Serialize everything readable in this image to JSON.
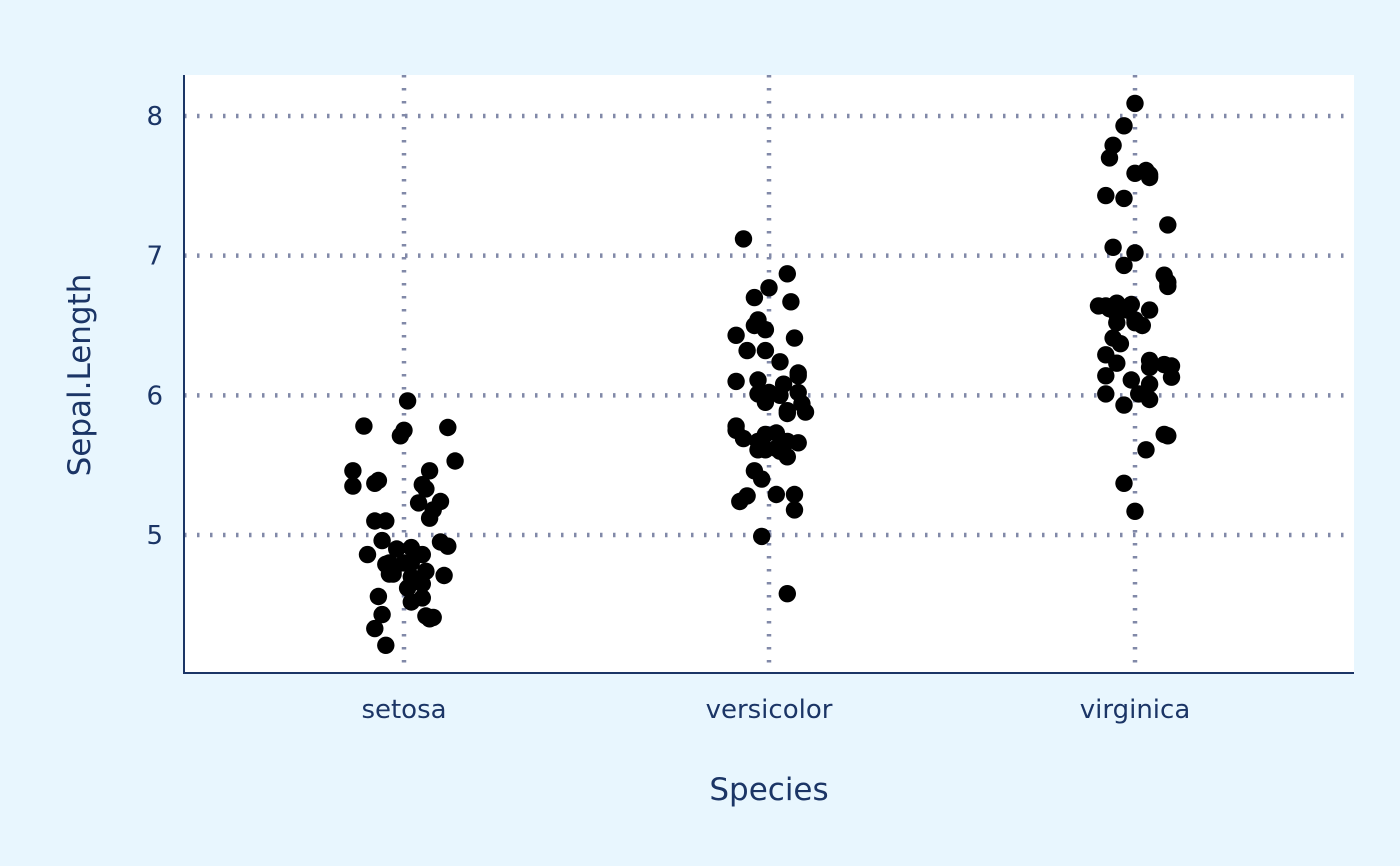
{
  "chart_data": {
    "type": "scatter",
    "title": "",
    "xlabel": "Species",
    "ylabel": "Sepal.Length",
    "categories": [
      "setosa",
      "versicolor",
      "virginica"
    ],
    "y_ticks": [
      5,
      6,
      7,
      8
    ],
    "ylim": [
      4.1,
      8.3
    ],
    "grid": true,
    "legend": "none",
    "colors": {
      "background": "#e8f6fe",
      "panel": "#ffffff",
      "grid": "#8189a8",
      "axis": "#1b3566",
      "text": "#1b3566",
      "point": "#000000"
    },
    "series": [
      {
        "category": "setosa",
        "jitter": [
          0.01,
          -0.11,
          0.12,
          0.0,
          -0.01,
          0.14,
          0.07,
          -0.14,
          -0.07,
          -0.08,
          0.05,
          -0.14,
          0.06,
          0.1,
          0.04,
          0.08,
          0.07,
          -0.05,
          -0.08,
          -0.06,
          0.1,
          0.12,
          0.02,
          -0.02,
          0.05,
          -0.1,
          -0.04,
          0.02,
          -0.05,
          -0.04,
          -0.03,
          0.06,
          -0.03,
          -0.03,
          -0.04,
          0.11,
          0.02,
          0.03,
          0.05,
          0.05,
          -0.07,
          0.02,
          0.06,
          0.08,
          0.07,
          -0.06,
          -0.08,
          -0.05,
          0.0,
          0.01
        ],
        "y": [
          5.96,
          5.78,
          5.77,
          5.75,
          5.71,
          5.53,
          5.46,
          5.46,
          5.39,
          5.37,
          5.36,
          5.35,
          5.33,
          5.24,
          5.23,
          5.18,
          5.12,
          5.1,
          5.1,
          4.96,
          4.95,
          4.92,
          4.91,
          4.9,
          4.86,
          4.86,
          4.8,
          4.8,
          4.79,
          4.78,
          4.76,
          4.74,
          4.74,
          4.72,
          4.72,
          4.71,
          4.7,
          4.67,
          4.65,
          4.55,
          4.56,
          4.52,
          4.42,
          4.41,
          4.4,
          4.43,
          4.33,
          4.21,
          4.8,
          4.62
        ]
      },
      {
        "category": "versicolor",
        "jitter": [
          -0.07,
          0.05,
          -0.0,
          -0.04,
          0.06,
          -0.03,
          -0.04,
          -0.01,
          0.07,
          -0.09,
          -0.06,
          -0.01,
          0.03,
          -0.09,
          -0.03,
          0.08,
          0.08,
          0.0,
          0.04,
          -0.03,
          0.08,
          0.09,
          0.05,
          -0.01,
          0.05,
          -0.09,
          -0.09,
          -0.01,
          -0.03,
          0.05,
          -0.02,
          0.08,
          -0.07,
          -0.01,
          -0.03,
          0.03,
          0.05,
          -0.04,
          -0.02,
          0.07,
          0.02,
          -0.06,
          -0.08,
          0.07,
          -0.02,
          0.05,
          0.02,
          0.02,
          0.1,
          0.03
        ],
        "y": [
          7.12,
          6.87,
          6.77,
          6.7,
          6.67,
          6.54,
          6.5,
          6.47,
          6.41,
          6.43,
          6.32,
          6.32,
          6.24,
          6.1,
          6.11,
          6.14,
          6.16,
          6.02,
          6.08,
          6.01,
          6.02,
          5.94,
          5.89,
          5.95,
          5.87,
          5.78,
          5.75,
          5.72,
          5.67,
          5.67,
          5.66,
          5.66,
          5.69,
          5.61,
          5.61,
          5.6,
          5.56,
          5.46,
          5.4,
          5.29,
          5.29,
          5.28,
          5.24,
          5.18,
          4.99,
          4.58,
          5.62,
          5.73,
          5.88,
          6.0
        ]
      },
      {
        "category": "virginica",
        "jitter": [
          0.0,
          -0.03,
          -0.06,
          -0.07,
          0.03,
          0.0,
          0.04,
          0.04,
          -0.08,
          -0.03,
          0.09,
          0.08,
          -0.06,
          -0.03,
          0.0,
          -0.08,
          0.09,
          0.09,
          -0.1,
          -0.07,
          -0.01,
          -0.05,
          -0.02,
          0.04,
          0.0,
          -0.05,
          -0.06,
          -0.04,
          0.02,
          -0.08,
          0.04,
          -0.05,
          0.08,
          0.1,
          0.1,
          0.04,
          -0.08,
          -0.01,
          -0.08,
          0.01,
          0.04,
          0.04,
          -0.03,
          0.08,
          0.09,
          0.03,
          -0.03,
          0.0,
          -0.05,
          0.0
        ],
        "y": [
          8.09,
          7.93,
          7.79,
          7.7,
          7.61,
          7.59,
          7.58,
          7.56,
          7.43,
          7.41,
          7.22,
          6.86,
          7.06,
          6.93,
          7.02,
          6.64,
          6.81,
          6.78,
          6.64,
          6.62,
          6.65,
          6.66,
          6.61,
          6.61,
          6.52,
          6.52,
          6.41,
          6.37,
          6.5,
          6.29,
          6.25,
          6.23,
          6.22,
          6.21,
          6.13,
          6.2,
          6.14,
          6.11,
          6.01,
          6.01,
          5.97,
          6.08,
          5.93,
          5.72,
          5.71,
          5.61,
          5.37,
          5.17,
          6.58,
          6.54
        ]
      }
    ]
  }
}
